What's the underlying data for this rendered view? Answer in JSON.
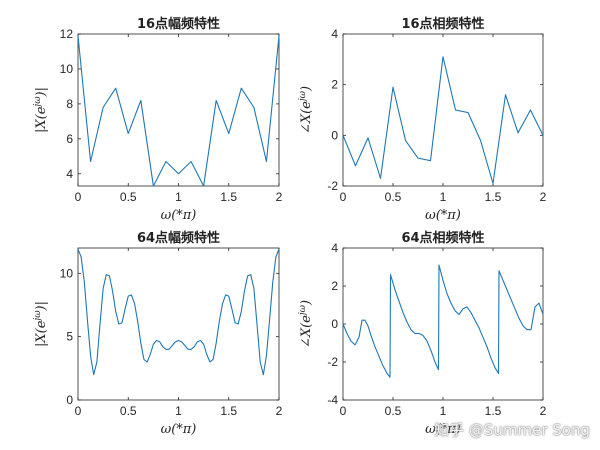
{
  "watermark": "知乎 @Summer Song",
  "chart_data": [
    {
      "id": "p1",
      "type": "line",
      "title": "16点幅频特性",
      "xlabel": "ω(*π)",
      "ylabel": "|X(e^{jω})|",
      "xlim": [
        0,
        2
      ],
      "ylim": [
        3.3,
        12
      ],
      "xticks": [
        "0",
        "0.5",
        "1",
        "1.5",
        "2"
      ],
      "xtick_values": [
        0,
        0.5,
        1,
        1.5,
        2
      ],
      "yticks": [
        "4",
        "6",
        "8",
        "10",
        "12"
      ],
      "ytick_values": [
        4,
        6,
        8,
        10,
        12
      ],
      "x": [
        0,
        0.125,
        0.25,
        0.375,
        0.5,
        0.625,
        0.75,
        0.875,
        1.0,
        1.125,
        1.25,
        1.375,
        1.5,
        1.625,
        1.75,
        1.875,
        2.0
      ],
      "y": [
        11.9,
        4.7,
        7.8,
        8.9,
        6.3,
        8.2,
        3.3,
        4.7,
        4.0,
        4.7,
        3.3,
        8.2,
        6.3,
        8.9,
        7.8,
        4.7,
        11.9
      ],
      "color": "#1f77b4"
    },
    {
      "id": "p2",
      "type": "line",
      "title": "16点相频特性",
      "xlabel": "ω(*π)",
      "ylabel": "∠X(e^{jω})",
      "xlim": [
        0,
        2
      ],
      "ylim": [
        -2,
        4
      ],
      "xticks": [
        "0",
        "0.5",
        "1",
        "1.5",
        "2"
      ],
      "xtick_values": [
        0,
        0.5,
        1,
        1.5,
        2
      ],
      "yticks": [
        "-2",
        "0",
        "2",
        "4"
      ],
      "ytick_values": [
        -2,
        0,
        2,
        4
      ],
      "x": [
        0,
        0.125,
        0.25,
        0.375,
        0.5,
        0.625,
        0.75,
        0.875,
        1.0,
        1.125,
        1.25,
        1.375,
        1.5,
        1.625,
        1.75,
        1.875,
        2.0
      ],
      "y": [
        0.0,
        -1.2,
        -0.1,
        -1.7,
        1.9,
        -0.2,
        -0.9,
        -1.0,
        3.1,
        1.0,
        0.9,
        -0.2,
        -1.9,
        1.6,
        0.1,
        1.0,
        0.0
      ],
      "color": "#1f77b4"
    },
    {
      "id": "p3",
      "type": "line",
      "title": "64点幅频特性",
      "xlabel": "ω(*π)",
      "ylabel": "|X(e^{jω})|",
      "xlim": [
        0,
        2
      ],
      "ylim": [
        0,
        12
      ],
      "xticks": [
        "0",
        "0.5",
        "1",
        "1.5",
        "2"
      ],
      "xtick_values": [
        0,
        0.5,
        1,
        1.5,
        2
      ],
      "yticks": [
        "0",
        "5",
        "10"
      ],
      "ytick_values": [
        0,
        5,
        10
      ],
      "x": [
        0,
        0.031,
        0.063,
        0.094,
        0.125,
        0.156,
        0.188,
        0.219,
        0.25,
        0.281,
        0.313,
        0.344,
        0.375,
        0.406,
        0.438,
        0.469,
        0.5,
        0.531,
        0.563,
        0.594,
        0.625,
        0.656,
        0.688,
        0.719,
        0.75,
        0.781,
        0.813,
        0.844,
        0.875,
        0.906,
        0.938,
        0.969,
        1.0,
        1.031,
        1.063,
        1.094,
        1.125,
        1.156,
        1.188,
        1.219,
        1.25,
        1.281,
        1.313,
        1.344,
        1.375,
        1.406,
        1.438,
        1.469,
        1.5,
        1.531,
        1.563,
        1.594,
        1.625,
        1.656,
        1.688,
        1.719,
        1.75,
        1.781,
        1.813,
        1.844,
        1.875,
        1.906,
        1.938,
        1.969,
        2.0
      ],
      "y": [
        11.9,
        11.3,
        9.3,
        6.3,
        3.5,
        2.0,
        3.0,
        6.0,
        8.8,
        9.9,
        9.8,
        8.6,
        7.0,
        6.0,
        6.1,
        7.2,
        8.2,
        8.3,
        7.6,
        6.2,
        4.5,
        3.2,
        3.0,
        3.6,
        4.4,
        4.7,
        4.6,
        4.2,
        4.0,
        4.0,
        4.3,
        4.6,
        4.7,
        4.6,
        4.3,
        4.0,
        4.0,
        4.2,
        4.6,
        4.7,
        4.4,
        3.6,
        3.0,
        3.2,
        4.5,
        6.2,
        7.6,
        8.3,
        8.2,
        7.2,
        6.1,
        6.0,
        7.0,
        8.6,
        9.8,
        9.9,
        8.8,
        6.0,
        3.0,
        2.0,
        3.5,
        6.3,
        9.3,
        11.3,
        11.9
      ],
      "color": "#1f77b4"
    },
    {
      "id": "p4",
      "type": "line",
      "title": "64点相频特性",
      "xlabel": "ω(*π)",
      "ylabel": "∠X(e^{jω})",
      "xlim": [
        0,
        2
      ],
      "ylim": [
        -4,
        4
      ],
      "xticks": [
        "0",
        "0.5",
        "1",
        "1.5",
        "2"
      ],
      "xtick_values": [
        0,
        0.5,
        1,
        1.5,
        2
      ],
      "yticks": [
        "-4",
        "-2",
        "0",
        "2",
        "4"
      ],
      "ytick_values": [
        -4,
        -2,
        0,
        2,
        4
      ],
      "x": [
        0,
        0.04,
        0.08,
        0.12,
        0.16,
        0.19,
        0.22,
        0.25,
        0.28,
        0.32,
        0.36,
        0.4,
        0.44,
        0.47,
        0.475,
        0.52,
        0.56,
        0.6,
        0.64,
        0.68,
        0.72,
        0.76,
        0.8,
        0.84,
        0.88,
        0.92,
        0.955,
        0.96,
        1.0,
        1.04,
        1.08,
        1.12,
        1.16,
        1.2,
        1.24,
        1.28,
        1.32,
        1.36,
        1.4,
        1.44,
        1.48,
        1.52,
        1.555,
        1.56,
        1.6,
        1.64,
        1.68,
        1.72,
        1.76,
        1.8,
        1.84,
        1.88,
        1.92,
        1.96,
        2.0
      ],
      "y": [
        0.0,
        -0.5,
        -0.9,
        -1.1,
        -0.7,
        0.2,
        0.2,
        -0.1,
        -0.6,
        -1.2,
        -1.7,
        -2.2,
        -2.6,
        -2.8,
        2.6,
        1.8,
        1.2,
        0.6,
        0.1,
        -0.3,
        -0.5,
        -0.5,
        -0.6,
        -0.9,
        -1.4,
        -2.0,
        -2.4,
        3.1,
        2.3,
        1.6,
        1.1,
        0.7,
        0.5,
        0.8,
        0.9,
        0.6,
        0.2,
        -0.2,
        -0.7,
        -1.2,
        -1.8,
        -2.3,
        -2.6,
        2.8,
        2.3,
        1.8,
        1.3,
        0.8,
        0.3,
        -0.1,
        -0.3,
        -0.3,
        0.9,
        1.1,
        0.5
      ],
      "color": "#1f77b4"
    }
  ]
}
